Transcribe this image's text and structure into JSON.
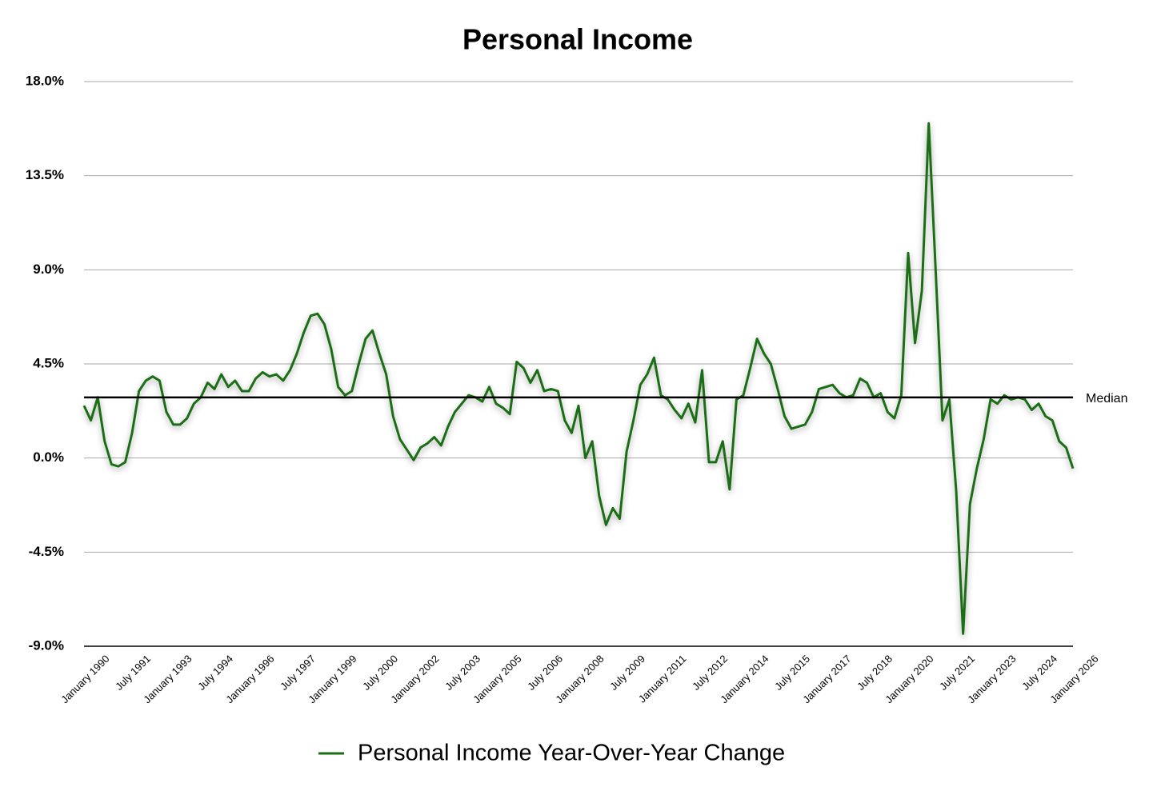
{
  "chart_data": {
    "type": "line",
    "title": "Personal Income",
    "categories": [
      "January 1990",
      null,
      null,
      null,
      null,
      null,
      "July 1991",
      null,
      null,
      null,
      null,
      null,
      "January 1993",
      null,
      null,
      null,
      null,
      null,
      "July 1994",
      null,
      null,
      null,
      null,
      null,
      "January 1996",
      null,
      null,
      null,
      null,
      null,
      "July 1997",
      null,
      null,
      null,
      null,
      null,
      "January 1999",
      null,
      null,
      null,
      null,
      null,
      "July 2000",
      null,
      null,
      null,
      null,
      null,
      "January 2002",
      null,
      null,
      null,
      null,
      null,
      "July 2003",
      null,
      null,
      null,
      null,
      null,
      "January 2005",
      null,
      null,
      null,
      null,
      null,
      "July 2006",
      null,
      null,
      null,
      null,
      null,
      "January 2008",
      null,
      null,
      null,
      null,
      null,
      "July 2009",
      null,
      null,
      null,
      null,
      null,
      "January 2011",
      null,
      null,
      null,
      null,
      null,
      "July 2012",
      null,
      null,
      null,
      null,
      null,
      "January 2014",
      null,
      null,
      null,
      null,
      null,
      "July 2015",
      null,
      null,
      null,
      null,
      null,
      "January 2017",
      null,
      null,
      null,
      null,
      null,
      "July 2018",
      null,
      null,
      null,
      null,
      null,
      "January 2020",
      null,
      null,
      null,
      null,
      null,
      "July 2021",
      null,
      null,
      null,
      null,
      null,
      "January 2023",
      null,
      null,
      null,
      null,
      null,
      "July 2024",
      null,
      null,
      null,
      null,
      null,
      "January 2026"
    ],
    "series": [
      {
        "name": "Personal Income Year-Over-Year Change",
        "color": "#1b6e14",
        "values": [
          2.5,
          1.8,
          2.9,
          0.8,
          -0.3,
          -0.4,
          -0.2,
          1.2,
          3.2,
          3.7,
          3.9,
          3.7,
          2.2,
          1.6,
          1.6,
          1.9,
          2.6,
          2.9,
          3.6,
          3.3,
          4.0,
          3.4,
          3.7,
          3.2,
          3.2,
          3.8,
          4.1,
          3.9,
          4.0,
          3.7,
          4.2,
          5.0,
          6.0,
          6.8,
          6.9,
          6.4,
          5.2,
          3.4,
          3.0,
          3.2,
          4.5,
          5.7,
          6.1,
          5.0,
          4.0,
          2.0,
          0.9,
          0.4,
          -0.1,
          0.5,
          0.7,
          1.0,
          0.6,
          1.5,
          2.2,
          2.6,
          3.0,
          2.9,
          2.7,
          3.4,
          2.6,
          2.4,
          2.1,
          4.6,
          4.3,
          3.6,
          4.2,
          3.2,
          3.3,
          3.2,
          1.8,
          1.2,
          2.5,
          0.0,
          0.8,
          -1.8,
          -3.2,
          -2.4,
          -2.9,
          0.3,
          1.8,
          3.5,
          4.0,
          4.8,
          3.0,
          2.8,
          2.3,
          1.9,
          2.6,
          1.7,
          4.2,
          -0.2,
          -0.2,
          0.8,
          -1.5,
          2.8,
          3.0,
          4.3,
          5.7,
          5.0,
          4.5,
          3.3,
          2.0,
          1.4,
          1.5,
          1.6,
          2.2,
          3.3,
          3.4,
          3.5,
          3.1,
          2.9,
          3.0,
          3.8,
          3.6,
          2.9,
          3.1,
          2.2,
          1.9,
          3.0,
          9.8,
          5.5,
          8.0,
          16.0,
          9.0,
          1.8,
          2.8,
          -1.6,
          -8.4,
          -2.2,
          -0.5,
          0.9,
          2.8,
          2.6,
          3.0,
          2.8,
          2.9,
          2.8,
          2.3,
          2.6,
          2.0,
          1.8,
          0.8,
          0.5,
          -0.5
        ]
      }
    ],
    "median": {
      "value": 2.9,
      "label": "Median"
    },
    "ylim": [
      -9,
      18
    ],
    "yticks": [
      {
        "value": -9,
        "label": "-9.0%"
      },
      {
        "value": -4.5,
        "label": "-4.5%"
      },
      {
        "value": 0,
        "label": "0.0%"
      },
      {
        "value": 4.5,
        "label": "4.5%"
      },
      {
        "value": 9,
        "label": "9.0%"
      },
      {
        "value": 13.5,
        "label": "13.5%"
      },
      {
        "value": 18,
        "label": "18.0%"
      }
    ],
    "grid": true,
    "legend": "bottom"
  }
}
